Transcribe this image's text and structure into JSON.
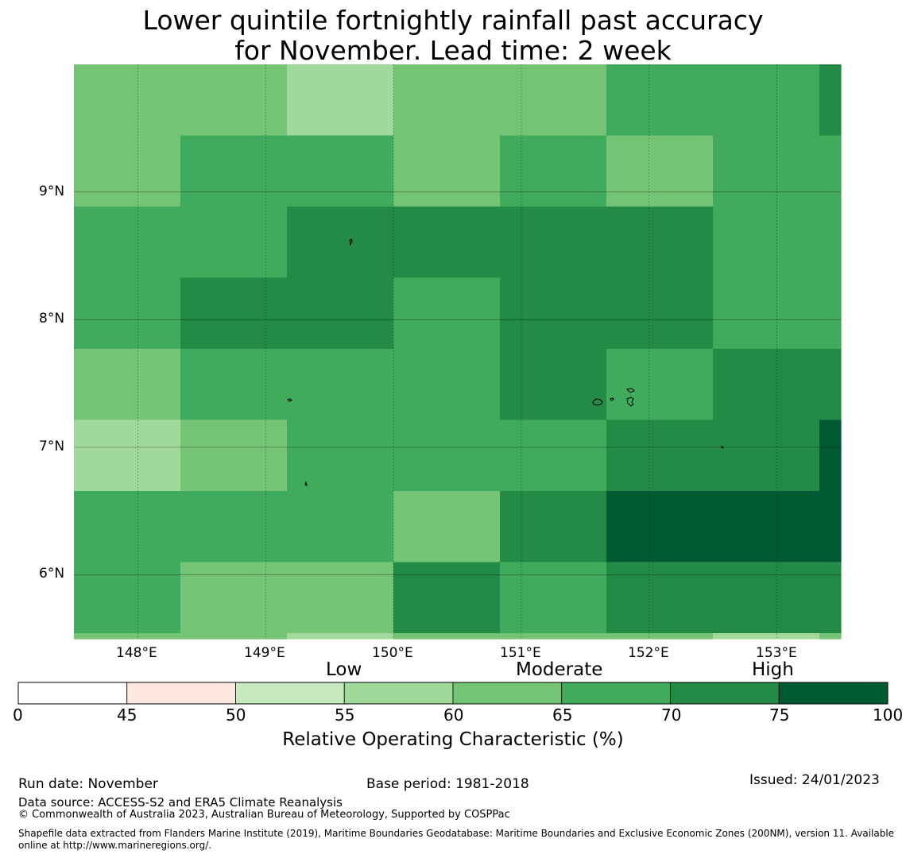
{
  "title": {
    "line1": "Lower quintile fortnightly rainfall past accuracy",
    "line2": "for November. Lead time: 2 week"
  },
  "map": {
    "lon_range": [
      147.5,
      153.5
    ],
    "lat_range": [
      5.5,
      10.0
    ],
    "lon_ticks": [
      "148°E",
      "149°E",
      "150°E",
      "151°E",
      "152°E",
      "153°E"
    ],
    "lat_ticks": [
      "9°N",
      "8°N",
      "7°N",
      "6°N"
    ],
    "grid_values": [
      [
        60,
        60,
        55,
        60,
        60,
        65,
        65,
        72
      ],
      [
        60,
        65,
        65,
        60,
        65,
        60,
        65,
        65
      ],
      [
        65,
        65,
        72,
        72,
        72,
        72,
        65,
        65
      ],
      [
        65,
        72,
        72,
        65,
        72,
        72,
        65,
        65
      ],
      [
        60,
        65,
        65,
        65,
        72,
        65,
        72,
        72
      ],
      [
        55,
        60,
        65,
        65,
        65,
        72,
        72,
        80
      ],
      [
        65,
        65,
        65,
        60,
        72,
        80,
        80,
        80
      ],
      [
        65,
        60,
        60,
        72,
        65,
        72,
        72,
        72
      ],
      [
        60,
        60,
        55,
        60,
        60,
        60,
        55,
        60
      ]
    ]
  },
  "colorbar": {
    "boundaries": [
      0,
      45,
      50,
      55,
      60,
      65,
      70,
      75,
      100
    ],
    "tick_labels": [
      "0",
      "45",
      "50",
      "55",
      "60",
      "65",
      "70",
      "75",
      "100"
    ],
    "colors": [
      "#ffffff",
      "#fee8df",
      "#c7e9c0",
      "#a1d99b",
      "#74c476",
      "#41ab5d",
      "#238b45",
      "#005a32"
    ],
    "categories": [
      "Low",
      "Moderate",
      "High"
    ],
    "title": "Relative Operating Characteristic (%)"
  },
  "footer": {
    "run_date": "Run date: November",
    "base_period": "Base period: 1981-2018",
    "issued": "Issued: 24/01/2023",
    "data_source": "Data source: ACCESS-S2 and ERA5 Climate Reanalysis",
    "copyright": "© Commonwealth of Australia 2023, Australian Bureau of Meteorology, Supported by COSPPac",
    "shapefile_line1": "Shapefile data extracted from Flanders Marine Institute (2019), Maritime Boundaries Geodatabase: Maritime Boundaries and Exclusive Economic Zones (200NM), version 11. Available",
    "shapefile_line2": "online at http://www.marineregions.org/."
  }
}
